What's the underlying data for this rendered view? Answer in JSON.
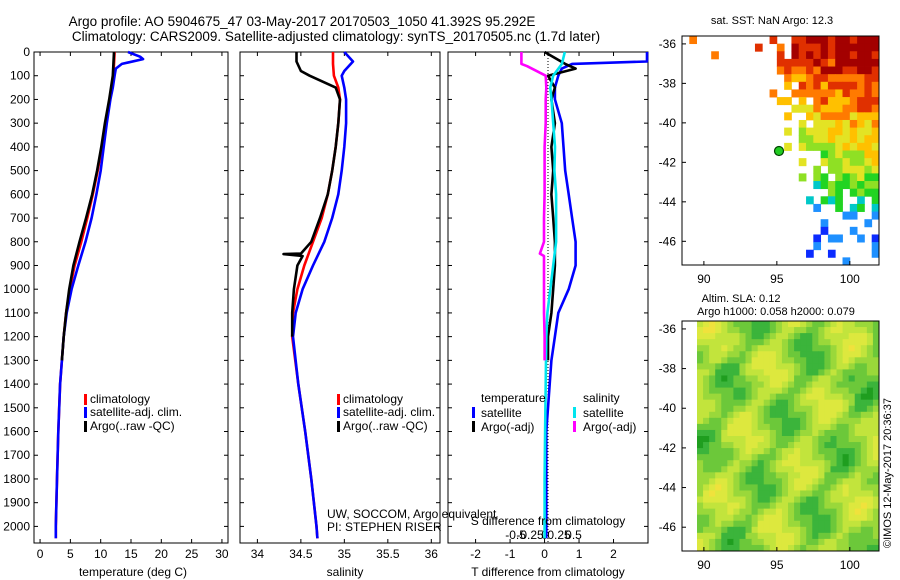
{
  "title_line1": "Argo profile: AO 5904675_47 03-May-2017 20170503_1050 41.392S 95.292E",
  "title_line2": "Climatology: CARS2009. Satellite-adjusted climatology: synTS_20170505.nc (1.7d later)",
  "credit_line1": "UW, SOCCOM, Argo equivalent",
  "credit_line2": "PI: STEPHEN RISER",
  "imos_stamp": "©IMOS 12-May-2017 20:36:37",
  "colors": {
    "climatology": "#ff0000",
    "satellite": "#0000ff",
    "argo": "#000000",
    "sal_satellite": "#00e5ee",
    "sal_argo": "#ff00ff"
  },
  "chart_data": [
    {
      "type": "line",
      "panel": "temperature",
      "title": "",
      "xlabel": "temperature (deg C)",
      "ylabel": "",
      "xlim": [
        -1,
        31
      ],
      "ylim": [
        2070,
        0
      ],
      "xticks": [
        "0",
        "5",
        "10",
        "15",
        "20",
        "25",
        "30"
      ],
      "yticks": [
        "0",
        "100",
        "200",
        "300",
        "400",
        "500",
        "600",
        "700",
        "800",
        "900",
        "1000",
        "1100",
        "1200",
        "1300",
        "1400",
        "1500",
        "1600",
        "1700",
        "1800",
        "1900",
        "2000"
      ],
      "legend": [
        "climatology",
        "satellite-adj. clim.",
        "Argo(..raw -QC)"
      ],
      "series": [
        {
          "name": "climatology",
          "color": "#ff0000",
          "depth": [
            0,
            50,
            100,
            150,
            200,
            300,
            400,
            500,
            600,
            700,
            800,
            900,
            1000,
            1100,
            1200,
            1300,
            1400,
            1600,
            1800,
            2000,
            2050
          ],
          "values": [
            12.3,
            12.2,
            12.1,
            11.8,
            11.5,
            10.8,
            10.2,
            9.5,
            8.7,
            7.8,
            6.8,
            5.7,
            4.9,
            4.3,
            3.9,
            3.6,
            3.3,
            3.0,
            2.8,
            2.6,
            2.6
          ]
        },
        {
          "name": "satellite-adj. clim.",
          "color": "#0000ff",
          "depth": [
            0,
            20,
            30,
            50,
            70,
            100,
            150,
            200,
            300,
            400,
            500,
            600,
            700,
            800,
            900,
            1000,
            1100,
            1200,
            1300,
            1400,
            1600,
            1800,
            2000,
            2050
          ],
          "values": [
            14.5,
            16.5,
            17,
            13.5,
            12.5,
            12.3,
            12.0,
            11.6,
            11.0,
            10.5,
            10.0,
            9.3,
            8.5,
            7.5,
            6.3,
            5.2,
            4.4,
            3.9,
            3.6,
            3.3,
            3.0,
            2.8,
            2.6,
            2.6
          ]
        },
        {
          "name": "Argo(..raw -QC)",
          "color": "#000000",
          "depth": [
            0,
            50,
            100,
            150,
            200,
            300,
            400,
            500,
            600,
            700,
            800,
            900,
            1000,
            1100,
            1200,
            1300
          ],
          "values": [
            12.2,
            12.1,
            12.0,
            11.7,
            11.4,
            10.7,
            10.1,
            9.4,
            8.6,
            7.6,
            6.5,
            5.5,
            4.8,
            4.3,
            3.9,
            3.6
          ]
        }
      ]
    },
    {
      "type": "line",
      "panel": "salinity",
      "title": "",
      "xlabel": "salinity",
      "ylabel": "",
      "xlim": [
        33.8,
        36.1
      ],
      "ylim": [
        2070,
        0
      ],
      "xticks": [
        "34",
        "34.5",
        "35",
        "35.5",
        "36"
      ],
      "legend": [
        "climatology",
        "satellite-adj. clim.",
        "Argo(..raw -QC)"
      ],
      "series": [
        {
          "name": "climatology",
          "color": "#ff0000",
          "depth": [
            0,
            50,
            100,
            150,
            200,
            300,
            400,
            500,
            600,
            700,
            800,
            900,
            1000,
            1100,
            1200,
            1400,
            1600,
            1800,
            2000,
            2050
          ],
          "values": [
            34.87,
            34.87,
            34.88,
            34.93,
            34.95,
            34.93,
            34.9,
            34.86,
            34.81,
            34.74,
            34.64,
            34.54,
            34.46,
            34.41,
            34.4,
            34.47,
            34.55,
            34.62,
            34.68,
            34.69
          ]
        },
        {
          "name": "satellite-adj. clim.",
          "color": "#0000ff",
          "depth": [
            0,
            40,
            80,
            100,
            150,
            200,
            300,
            400,
            500,
            600,
            700,
            800,
            900,
            1000,
            1100,
            1200,
            1400,
            1600,
            1800,
            2000,
            2050
          ],
          "values": [
            35.0,
            35.1,
            35.0,
            34.97,
            35.0,
            35.02,
            35.02,
            35.0,
            34.97,
            34.93,
            34.86,
            34.77,
            34.64,
            34.52,
            34.44,
            34.41,
            34.47,
            34.55,
            34.62,
            34.68,
            34.69
          ]
        },
        {
          "name": "Argo(..raw -QC)",
          "color": "#000000",
          "depth": [
            0,
            40,
            80,
            100,
            150,
            200,
            300,
            400,
            500,
            600,
            700,
            800,
            850,
            852,
            860,
            900,
            1000,
            1100,
            1200
          ],
          "values": [
            34.45,
            34.45,
            34.5,
            34.6,
            34.9,
            34.95,
            34.93,
            34.9,
            34.86,
            34.81,
            34.72,
            34.62,
            34.5,
            34.3,
            34.52,
            34.46,
            34.42,
            34.4,
            34.4
          ]
        }
      ]
    },
    {
      "type": "line",
      "panel": "difference",
      "title": "",
      "xlabel": "T difference from climatology",
      "ylabel": "",
      "xlim": [
        -2.8,
        3
      ],
      "ylim": [
        2070,
        0
      ],
      "xticks": [
        "-2",
        "-1",
        "0",
        "1",
        "2"
      ],
      "secondary_xlabel": "S difference from climatology",
      "secondary_xticks": [
        "-0.5",
        "-0.25",
        "0",
        "0.25",
        "0.5"
      ],
      "legend_groups": [
        {
          "title": "temperature",
          "items": [
            "satellite",
            "Argo(-adj)"
          ]
        },
        {
          "title": "salinity",
          "items": [
            "satellite",
            "Argo(-adj)"
          ]
        }
      ],
      "series": [
        {
          "name": "temperature satellite",
          "color": "#0000ff",
          "depth": [
            0,
            40,
            50,
            70,
            100,
            150,
            200,
            300,
            400,
            500,
            600,
            700,
            800,
            900,
            1000,
            1100,
            1200,
            1300,
            1400,
            1500,
            1600,
            1700,
            1800,
            1900,
            2000,
            2050
          ],
          "values": [
            3,
            3,
            0.8,
            0.5,
            0.4,
            0.3,
            0.3,
            0.5,
            0.55,
            0.6,
            0.7,
            0.8,
            0.9,
            0.9,
            0.7,
            0.4,
            0.3,
            0.2,
            0.15,
            0.1,
            0.05,
            0.05,
            0.05,
            0.05,
            0.05,
            0.05
          ]
        },
        {
          "name": "temperature Argo(-adj)",
          "color": "#000000",
          "depth": [
            0,
            50,
            70,
            100,
            150,
            200,
            300,
            400,
            500,
            600,
            700,
            800,
            900,
            1000,
            1100,
            1200,
            1300
          ],
          "values": [
            0,
            0.6,
            0.9,
            0.1,
            0.3,
            0.2,
            0.3,
            0.2,
            0.25,
            0.2,
            0.25,
            0.3,
            0.3,
            0.25,
            0.2,
            0.1,
            0.1
          ]
        },
        {
          "name": "salinity satellite",
          "color": "#00e5ee",
          "depth": [
            0,
            50,
            100,
            150,
            200,
            300,
            400,
            500,
            600,
            700,
            800,
            900,
            1000,
            1100,
            1200,
            1400,
            1600,
            1800,
            2000,
            2050
          ],
          "values": [
            0.35,
            0.3,
            0.15,
            0.1,
            0.12,
            0.15,
            0.18,
            0.17,
            0.2,
            0.2,
            0.2,
            0.15,
            0.1,
            0.05,
            0.03,
            0.02,
            0.01,
            0.0,
            0.0,
            0.0
          ]
        },
        {
          "name": "salinity Argo(-adj)",
          "color": "#ff00ff",
          "depth": [
            0,
            50,
            60,
            100,
            150,
            200,
            300,
            400,
            500,
            600,
            700,
            800,
            850,
            860,
            900,
            1000,
            1100,
            1200,
            1300
          ],
          "values": [
            -0.4,
            -0.4,
            -0.3,
            0.02,
            0.03,
            0.02,
            0.02,
            0.0,
            0.0,
            0.0,
            -0.01,
            -0.01,
            -0.08,
            -0.01,
            -0.01,
            -0.01,
            -0.01,
            0.0,
            0.0
          ]
        }
      ]
    },
    {
      "type": "heatmap",
      "panel": "sst_map",
      "title": "sat. SST: NaN Argo: 12.3",
      "xticks": [
        "90",
        "95",
        "100"
      ],
      "yticks": [
        "-36",
        "-38",
        "-40",
        "-42",
        "-44",
        "-46"
      ],
      "xlim": [
        88.5,
        102
      ],
      "ylim": [
        -47.2,
        -35.6
      ],
      "argo_position": [
        95.3,
        -41.4
      ]
    },
    {
      "type": "heatmap",
      "panel": "sla_map",
      "title_line1": "Altim. SLA: 0.12",
      "title_line2": "Argo h1000: 0.058 h2000: 0.079",
      "xticks": [
        "90",
        "95",
        "100"
      ],
      "yticks": [
        "-36",
        "-38",
        "-40",
        "-42",
        "-44",
        "-46"
      ],
      "xlim": [
        88.5,
        102
      ],
      "ylim": [
        -47.2,
        -35.6
      ]
    }
  ]
}
